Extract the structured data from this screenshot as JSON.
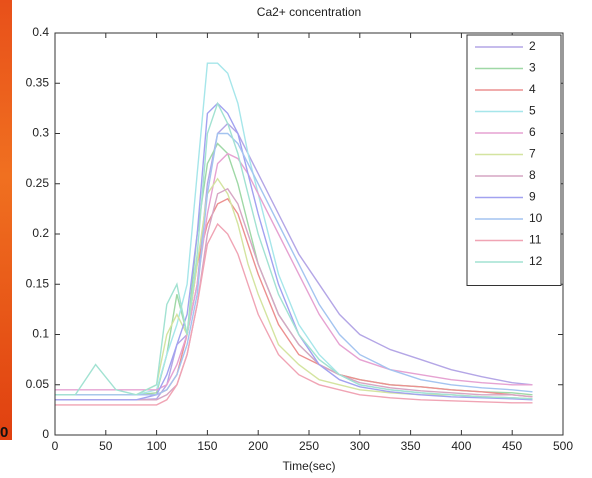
{
  "edge_label": "0",
  "chart_data": {
    "type": "line",
    "title": "Ca2+ concentration",
    "x_label": "Time(sec)",
    "x": [
      0,
      20,
      40,
      60,
      80,
      100,
      110,
      120,
      130,
      140,
      150,
      160,
      170,
      180,
      190,
      200,
      220,
      240,
      260,
      280,
      300,
      330,
      360,
      390,
      420,
      450,
      470
    ],
    "xlim": [
      0,
      500
    ],
    "xticks": [
      0,
      50,
      100,
      150,
      200,
      250,
      300,
      350,
      400,
      450,
      500
    ],
    "ylim": [
      0,
      0.4
    ],
    "yticks": [
      0,
      0.05,
      0.1,
      0.15,
      0.2,
      0.25,
      0.3,
      0.35,
      0.4
    ],
    "legend": "upper right",
    "series": [
      {
        "name": "2",
        "color": "#b4a6e6",
        "values": [
          0.035,
          0.035,
          0.035,
          0.035,
          0.035,
          0.036,
          0.05,
          0.09,
          0.1,
          0.15,
          0.25,
          0.3,
          0.31,
          0.3,
          0.28,
          0.26,
          0.22,
          0.18,
          0.15,
          0.12,
          0.1,
          0.085,
          0.075,
          0.065,
          0.058,
          0.052,
          0.05
        ]
      },
      {
        "name": "3",
        "color": "#9fd8a6",
        "values": [
          0.04,
          0.04,
          0.04,
          0.04,
          0.04,
          0.042,
          0.08,
          0.14,
          0.1,
          0.2,
          0.27,
          0.29,
          0.28,
          0.25,
          0.21,
          0.17,
          0.12,
          0.09,
          0.07,
          0.06,
          0.055,
          0.05,
          0.048,
          0.045,
          0.043,
          0.042,
          0.04
        ]
      },
      {
        "name": "4",
        "color": "#ec9090",
        "values": [
          0.04,
          0.04,
          0.04,
          0.04,
          0.04,
          0.04,
          0.045,
          0.06,
          0.1,
          0.17,
          0.21,
          0.23,
          0.235,
          0.22,
          0.19,
          0.16,
          0.11,
          0.08,
          0.07,
          0.06,
          0.055,
          0.05,
          0.048,
          0.045,
          0.043,
          0.04,
          0.038
        ]
      },
      {
        "name": "5",
        "color": "#a6e6ea",
        "values": [
          0.04,
          0.04,
          0.04,
          0.04,
          0.04,
          0.045,
          0.08,
          0.11,
          0.15,
          0.26,
          0.37,
          0.37,
          0.36,
          0.33,
          0.28,
          0.24,
          0.16,
          0.11,
          0.08,
          0.06,
          0.05,
          0.045,
          0.042,
          0.04,
          0.038,
          0.037,
          0.036
        ]
      },
      {
        "name": "6",
        "color": "#e6a2d2",
        "values": [
          0.045,
          0.045,
          0.045,
          0.045,
          0.045,
          0.045,
          0.05,
          0.07,
          0.1,
          0.15,
          0.22,
          0.27,
          0.28,
          0.275,
          0.26,
          0.24,
          0.2,
          0.16,
          0.12,
          0.09,
          0.075,
          0.065,
          0.06,
          0.055,
          0.052,
          0.05,
          0.05
        ]
      },
      {
        "name": "7",
        "color": "#d4e4a0",
        "values": [
          0.04,
          0.04,
          0.04,
          0.04,
          0.04,
          0.05,
          0.1,
          0.12,
          0.1,
          0.17,
          0.24,
          0.255,
          0.24,
          0.21,
          0.17,
          0.14,
          0.09,
          0.07,
          0.055,
          0.05,
          0.045,
          0.042,
          0.04,
          0.04,
          0.038,
          0.037,
          0.036
        ]
      },
      {
        "name": "8",
        "color": "#d6a6c4",
        "values": [
          0.035,
          0.035,
          0.035,
          0.035,
          0.035,
          0.035,
          0.04,
          0.05,
          0.08,
          0.13,
          0.2,
          0.24,
          0.245,
          0.23,
          0.2,
          0.17,
          0.12,
          0.09,
          0.07,
          0.06,
          0.052,
          0.047,
          0.044,
          0.042,
          0.04,
          0.04,
          0.038
        ]
      },
      {
        "name": "9",
        "color": "#a2a2f0",
        "values": [
          0.035,
          0.035,
          0.035,
          0.035,
          0.035,
          0.04,
          0.06,
          0.09,
          0.12,
          0.2,
          0.32,
          0.33,
          0.32,
          0.3,
          0.26,
          0.22,
          0.15,
          0.1,
          0.07,
          0.055,
          0.048,
          0.043,
          0.04,
          0.038,
          0.037,
          0.036,
          0.035
        ]
      },
      {
        "name": "10",
        "color": "#a4c4f0",
        "values": [
          0.04,
          0.04,
          0.04,
          0.04,
          0.04,
          0.04,
          0.045,
          0.06,
          0.09,
          0.14,
          0.24,
          0.3,
          0.3,
          0.29,
          0.27,
          0.25,
          0.21,
          0.17,
          0.13,
          0.1,
          0.08,
          0.065,
          0.055,
          0.05,
          0.047,
          0.045,
          0.043
        ]
      },
      {
        "name": "11",
        "color": "#f0a4b4",
        "values": [
          0.03,
          0.03,
          0.03,
          0.03,
          0.03,
          0.03,
          0.035,
          0.05,
          0.08,
          0.13,
          0.19,
          0.21,
          0.2,
          0.18,
          0.15,
          0.12,
          0.08,
          0.06,
          0.05,
          0.045,
          0.04,
          0.037,
          0.035,
          0.034,
          0.033,
          0.032,
          0.032
        ]
      },
      {
        "name": "12",
        "color": "#a2e2d2",
        "values": [
          0.04,
          0.04,
          0.07,
          0.045,
          0.04,
          0.05,
          0.13,
          0.15,
          0.1,
          0.18,
          0.3,
          0.33,
          0.31,
          0.28,
          0.24,
          0.2,
          0.14,
          0.1,
          0.075,
          0.06,
          0.05,
          0.045,
          0.042,
          0.04,
          0.038,
          0.037,
          0.036
        ]
      }
    ]
  }
}
